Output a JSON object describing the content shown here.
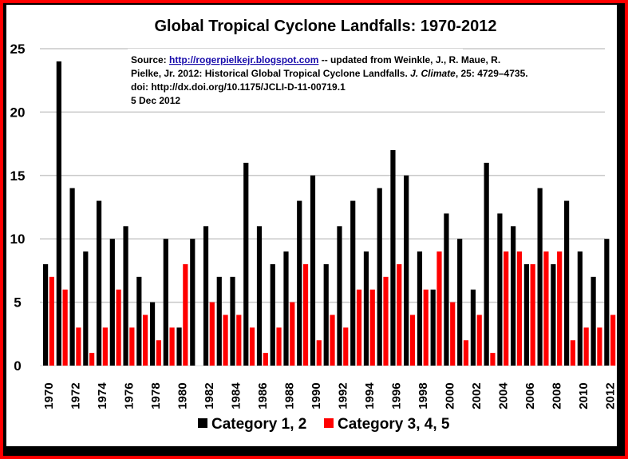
{
  "chart_data": {
    "type": "bar",
    "title": "Global Tropical Cyclone Landfalls: 1970-2012",
    "source_note": {
      "line1_prefix": "Source: ",
      "line1_link": "http://rogerpielkejr.blogspot.com",
      "line1_suffix": " -- updated from Weinkle, J., R. Maue, R.",
      "line2_prefix": "Pielke, Jr. 2012: Historical Global Tropical Cyclone Landfalls. ",
      "line2_italic": "J. Climate",
      "line2_suffix": ", 25: 4729–4735.",
      "line3": "doi: http://dx.doi.org/10.1175/JCLI-D-11-00719.1",
      "line4": "5 Dec 2012"
    },
    "xlabel": "",
    "ylabel": "",
    "ylim": [
      0,
      25
    ],
    "yticks": [
      0,
      5,
      10,
      15,
      20,
      25
    ],
    "grid": true,
    "legend_position": "bottom",
    "categories": [
      "1970",
      "1971",
      "1972",
      "1973",
      "1974",
      "1975",
      "1976",
      "1977",
      "1978",
      "1979",
      "1980",
      "1981",
      "1982",
      "1983",
      "1984",
      "1985",
      "1986",
      "1987",
      "1988",
      "1989",
      "1990",
      "1991",
      "1992",
      "1993",
      "1994",
      "1995",
      "1996",
      "1997",
      "1998",
      "1999",
      "2000",
      "2001",
      "2002",
      "2003",
      "2004",
      "2005",
      "2006",
      "2007",
      "2008",
      "2009",
      "2010",
      "2011",
      "2012"
    ],
    "xtick_labels": [
      "1970",
      "1972",
      "1974",
      "1976",
      "1978",
      "1980",
      "1982",
      "1984",
      "1986",
      "1988",
      "1990",
      "1992",
      "1994",
      "1996",
      "1998",
      "2000",
      "2002",
      "2004",
      "2006",
      "2008",
      "2010",
      "2012"
    ],
    "series": [
      {
        "name": "Category 1, 2",
        "color": "#000000",
        "values": [
          8,
          24,
          14,
          9,
          13,
          10,
          11,
          7,
          5,
          10,
          3,
          10,
          11,
          7,
          7,
          16,
          11,
          8,
          9,
          13,
          15,
          8,
          11,
          13,
          9,
          14,
          17,
          15,
          9,
          6,
          12,
          10,
          6,
          16,
          12,
          11,
          8,
          14,
          8,
          13,
          9,
          7,
          10
        ]
      },
      {
        "name": "Category 3, 4, 5",
        "color": "#ff0000",
        "values": [
          7,
          6,
          3,
          1,
          3,
          6,
          3,
          4,
          2,
          3,
          8,
          0,
          5,
          4,
          4,
          3,
          1,
          3,
          5,
          8,
          2,
          4,
          3,
          6,
          6,
          7,
          8,
          4,
          6,
          9,
          5,
          2,
          4,
          1,
          9,
          9,
          8,
          9,
          9,
          2,
          3,
          3,
          4
        ]
      }
    ]
  },
  "frame": {
    "outer_color": "#ff0000",
    "inner_color": "#000000",
    "gridline_color": "#c8c8c8",
    "link_color": "#1a0dab"
  }
}
